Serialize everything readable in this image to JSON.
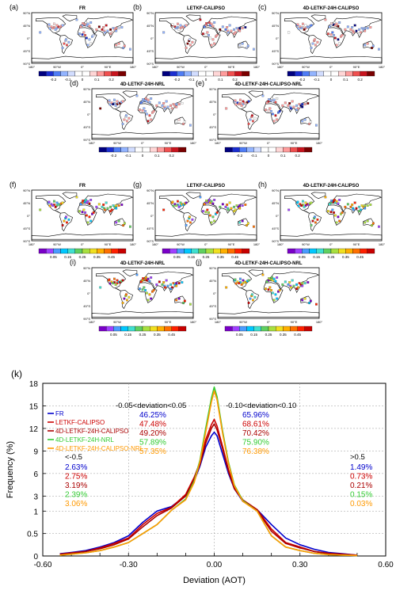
{
  "panel_group_1": {
    "panels": [
      {
        "label": "(a)",
        "title": "FR"
      },
      {
        "label": "(b)",
        "title": "LETKF-CALIPSO"
      },
      {
        "label": "(c)",
        "title": "4D-LETKF-24H-CALIPSO"
      },
      {
        "label": "(d)",
        "title": "4D-LETKF-24H-NRL"
      },
      {
        "label": "(e)",
        "title": "4D-LETKF-24H-CALIPSO-NRL"
      }
    ],
    "colorbar": {
      "ticks": [
        "-0.2",
        "-0.1",
        "0",
        "0.1",
        "0.2"
      ],
      "colors": [
        "#00007f",
        "#1c2fd1",
        "#4f7cf5",
        "#93b4ff",
        "#d2ddff",
        "#ffffff",
        "#ffffff",
        "#ffd6d6",
        "#ff9c9c",
        "#f05050",
        "#c8141e",
        "#7a0000"
      ]
    }
  },
  "panel_group_2": {
    "panels": [
      {
        "label": "(f)",
        "title": "FR"
      },
      {
        "label": "(g)",
        "title": "LETKF-CALIPSO"
      },
      {
        "label": "(h)",
        "title": "4D-LETKF-24H-CALIPSO"
      },
      {
        "label": "(i)",
        "title": "4D-LETKF-24H-NRL"
      },
      {
        "label": "(j)",
        "title": "4D-LETKF-24H-CALIPSO-NRL"
      }
    ],
    "colorbar": {
      "ticks": [
        "0.05",
        "0.15",
        "0.25",
        "0.35",
        "0.45"
      ],
      "colors": [
        "#7a00c8",
        "#a040ff",
        "#4a9cff",
        "#00c8ff",
        "#40e0d0",
        "#60d060",
        "#a8e040",
        "#f0e020",
        "#ffb000",
        "#ff7000",
        "#ff2000",
        "#c80000"
      ]
    }
  },
  "map_axes": {
    "lat_ticks": [
      "90°N",
      "45°N",
      "0°",
      "45°S",
      "90°S"
    ],
    "lon_ticks": [
      "180°",
      "90°W",
      "0°",
      "90°E",
      "180°"
    ]
  },
  "chart_data": {
    "type": "line",
    "panel_label": "(k)",
    "xlabel": "Deviation (AOT)",
    "ylabel": "Frequency (%)",
    "xlim": [
      -0.6,
      0.6
    ],
    "x_ticks": [
      "-0.60",
      "-0.30",
      "0.00",
      "0.30",
      "0.60"
    ],
    "y_ticks": [
      "0",
      "0.5",
      "1",
      "3",
      "6",
      "9",
      "12",
      "15",
      "18"
    ],
    "y_scale_note": "piecewise: 0-1 expanded, 1-18 linear",
    "grid": true,
    "legend_placement": "top-left",
    "x": [
      -0.54,
      -0.5,
      -0.45,
      -0.4,
      -0.35,
      -0.3,
      -0.25,
      -0.2,
      -0.15,
      -0.1,
      -0.07,
      -0.05,
      -0.03,
      -0.01,
      0.0,
      0.01,
      0.03,
      0.05,
      0.07,
      0.1,
      0.15,
      0.2,
      0.25,
      0.3,
      0.35,
      0.4,
      0.45,
      0.5
    ],
    "series": [
      {
        "name": "FR",
        "color": "#0000cc",
        "values": [
          0.05,
          0.08,
          0.12,
          0.2,
          0.3,
          0.45,
          0.75,
          1.0,
          1.6,
          3.0,
          5.0,
          7.0,
          9.5,
          11.0,
          11.5,
          11.0,
          8.5,
          6.0,
          4.0,
          2.3,
          1.2,
          0.7,
          0.4,
          0.25,
          0.15,
          0.08,
          0.05,
          0.02
        ]
      },
      {
        "name": "LETKF-CALIPSO",
        "color": "#cc0000",
        "values": [
          0.04,
          0.07,
          0.1,
          0.18,
          0.28,
          0.4,
          0.7,
          0.95,
          1.5,
          3.2,
          5.5,
          7.5,
          10.5,
          12.5,
          13.2,
          12.3,
          9.5,
          6.5,
          4.2,
          2.5,
          1.2,
          0.6,
          0.3,
          0.2,
          0.1,
          0.06,
          0.04,
          0.02
        ]
      },
      {
        "name": "4D-LETKF-24H-CALIPSO",
        "color": "#aa0000",
        "values": [
          0.03,
          0.06,
          0.1,
          0.16,
          0.25,
          0.38,
          0.65,
          0.9,
          1.4,
          3.0,
          5.2,
          7.2,
          10.0,
          12.0,
          12.6,
          11.8,
          9.2,
          6.3,
          4.0,
          2.4,
          1.1,
          0.55,
          0.28,
          0.18,
          0.1,
          0.05,
          0.03,
          0.01
        ]
      },
      {
        "name": "4D-LETKF-24H-NRL",
        "color": "#33cc33",
        "values": [
          0.02,
          0.04,
          0.07,
          0.12,
          0.2,
          0.3,
          0.5,
          0.7,
          1.1,
          2.6,
          5.0,
          7.8,
          12.0,
          16.0,
          17.5,
          16.2,
          11.5,
          7.5,
          4.5,
          2.4,
          1.0,
          0.45,
          0.2,
          0.12,
          0.06,
          0.03,
          0.02,
          0.01
        ]
      },
      {
        "name": "4D-LETKF-24H-CALIPSO-NRL",
        "color": "#ff9900",
        "values": [
          0.02,
          0.04,
          0.07,
          0.12,
          0.2,
          0.3,
          0.5,
          0.7,
          1.1,
          2.5,
          4.8,
          7.6,
          11.5,
          15.5,
          17.0,
          15.8,
          11.2,
          7.3,
          4.4,
          2.3,
          1.0,
          0.45,
          0.2,
          0.12,
          0.06,
          0.03,
          0.02,
          0.01
        ]
      }
    ],
    "annotations": {
      "range1_label": "-0.05<deviation<0.05",
      "range2_label": "-0.10<deviation<0.10",
      "range1_values": [
        "46.25%",
        "47.48%",
        "49.20%",
        "57.89%",
        "57.35%"
      ],
      "range2_values": [
        "65.96%",
        "68.61%",
        "70.42%",
        "75.90%",
        "76.38%"
      ],
      "low_label": "<-0.5",
      "high_label": ">0.5",
      "low_values": [
        "2.63%",
        "2.75%",
        "3.19%",
        "2.39%",
        "3.06%"
      ],
      "high_values": [
        "1.49%",
        "0.73%",
        "0.21%",
        "0.15%",
        "0.03%"
      ]
    }
  }
}
